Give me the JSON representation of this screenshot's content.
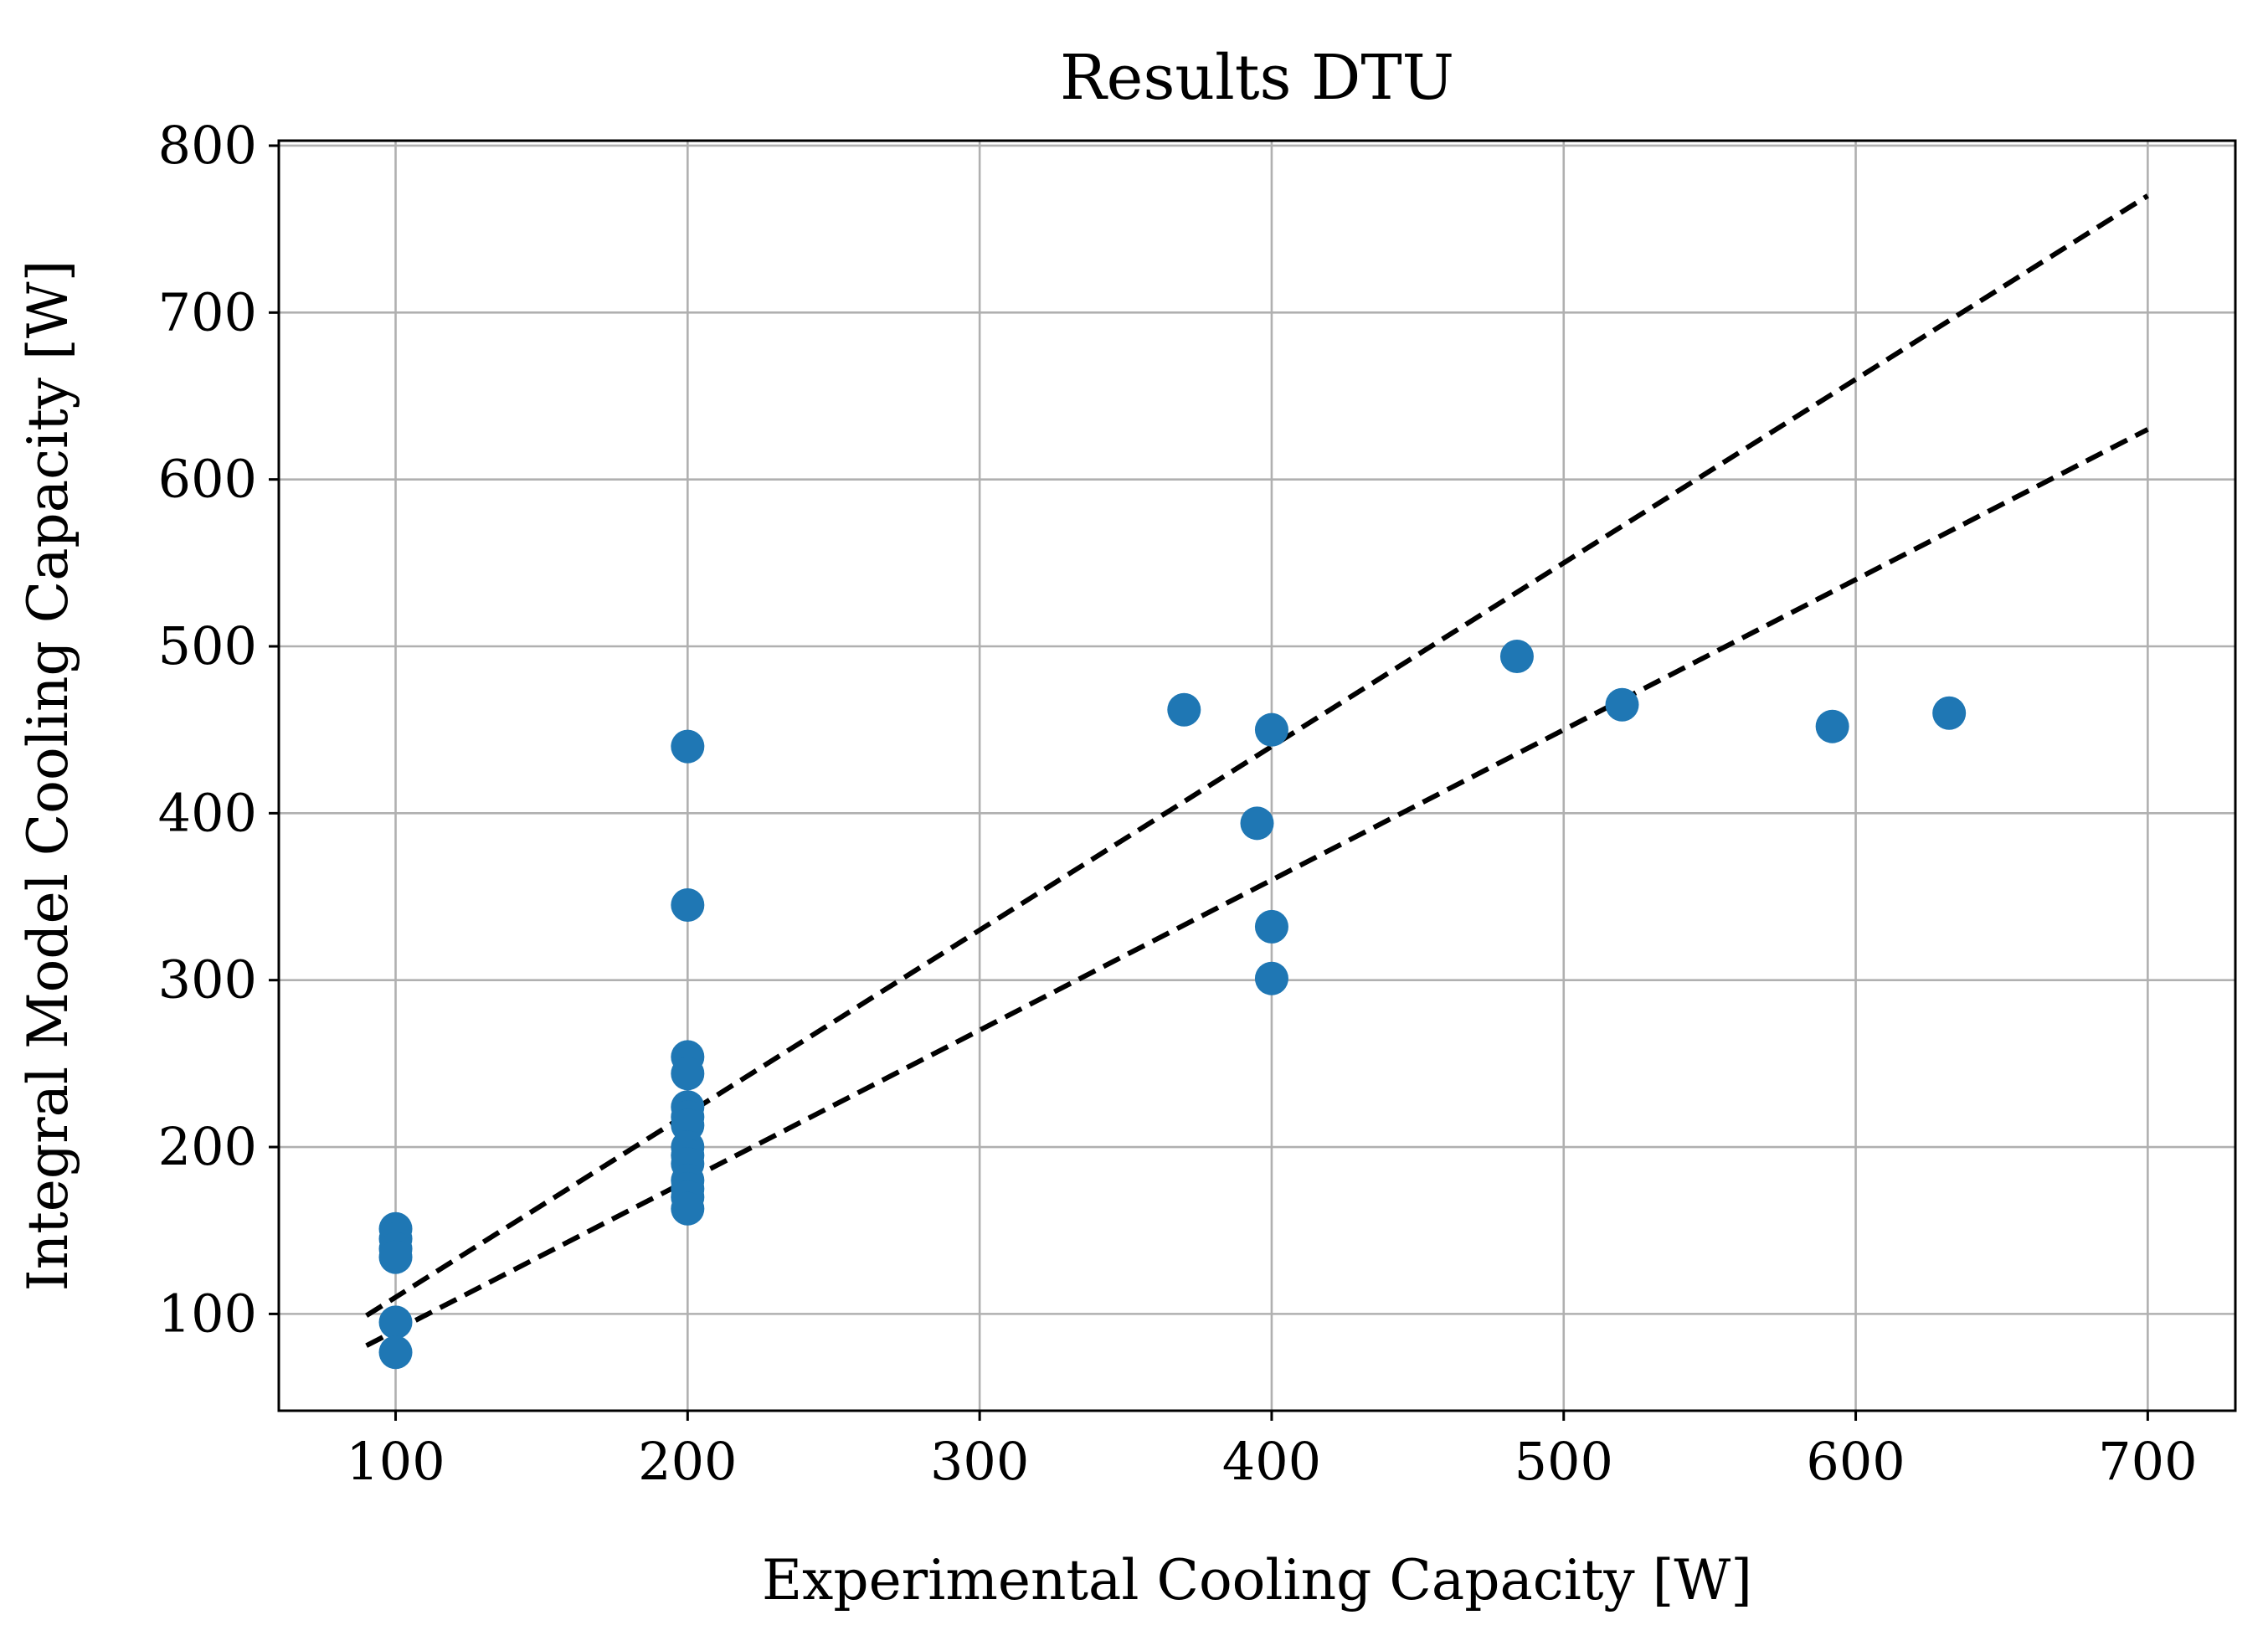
{
  "chart_data": {
    "type": "scatter",
    "title": "Results DTU",
    "xlabel": "Experimental Cooling Capacity [W]",
    "ylabel": "Integral Model Cooling Capacity [W]",
    "xlim": [
      60,
      730
    ],
    "ylim": [
      42,
      803
    ],
    "xticks": [
      100,
      200,
      300,
      400,
      500,
      600,
      700
    ],
    "yticks": [
      100,
      200,
      300,
      400,
      500,
      600,
      700,
      800
    ],
    "xtick_labels": [
      "100",
      "200",
      "300",
      "400",
      "500",
      "600",
      "700"
    ],
    "ytick_labels": [
      "100",
      "200",
      "300",
      "400",
      "500",
      "600",
      "700",
      "800"
    ],
    "grid": true,
    "marker_color": "#1f77b4",
    "line_color": "#000000",
    "points": [
      {
        "x": 100,
        "y": 151
      },
      {
        "x": 100,
        "y": 145
      },
      {
        "x": 100,
        "y": 139
      },
      {
        "x": 100,
        "y": 134
      },
      {
        "x": 100,
        "y": 95
      },
      {
        "x": 100,
        "y": 77
      },
      {
        "x": 200,
        "y": 440
      },
      {
        "x": 200,
        "y": 345
      },
      {
        "x": 200,
        "y": 254
      },
      {
        "x": 200,
        "y": 244
      },
      {
        "x": 200,
        "y": 224
      },
      {
        "x": 200,
        "y": 218
      },
      {
        "x": 200,
        "y": 213
      },
      {
        "x": 200,
        "y": 200
      },
      {
        "x": 200,
        "y": 195
      },
      {
        "x": 200,
        "y": 190
      },
      {
        "x": 200,
        "y": 180
      },
      {
        "x": 200,
        "y": 175
      },
      {
        "x": 200,
        "y": 170
      },
      {
        "x": 200,
        "y": 163
      },
      {
        "x": 370,
        "y": 462
      },
      {
        "x": 395,
        "y": 394
      },
      {
        "x": 400,
        "y": 450
      },
      {
        "x": 400,
        "y": 332
      },
      {
        "x": 400,
        "y": 301
      },
      {
        "x": 484,
        "y": 494
      },
      {
        "x": 520,
        "y": 465
      },
      {
        "x": 592,
        "y": 452
      },
      {
        "x": 632,
        "y": 460
      }
    ],
    "lines": [
      {
        "x": [
          90,
          700
        ],
        "y": [
          99,
          770
        ],
        "style": "dashed"
      },
      {
        "x": [
          90,
          700
        ],
        "y": [
          81,
          630
        ],
        "style": "dashed"
      }
    ]
  }
}
